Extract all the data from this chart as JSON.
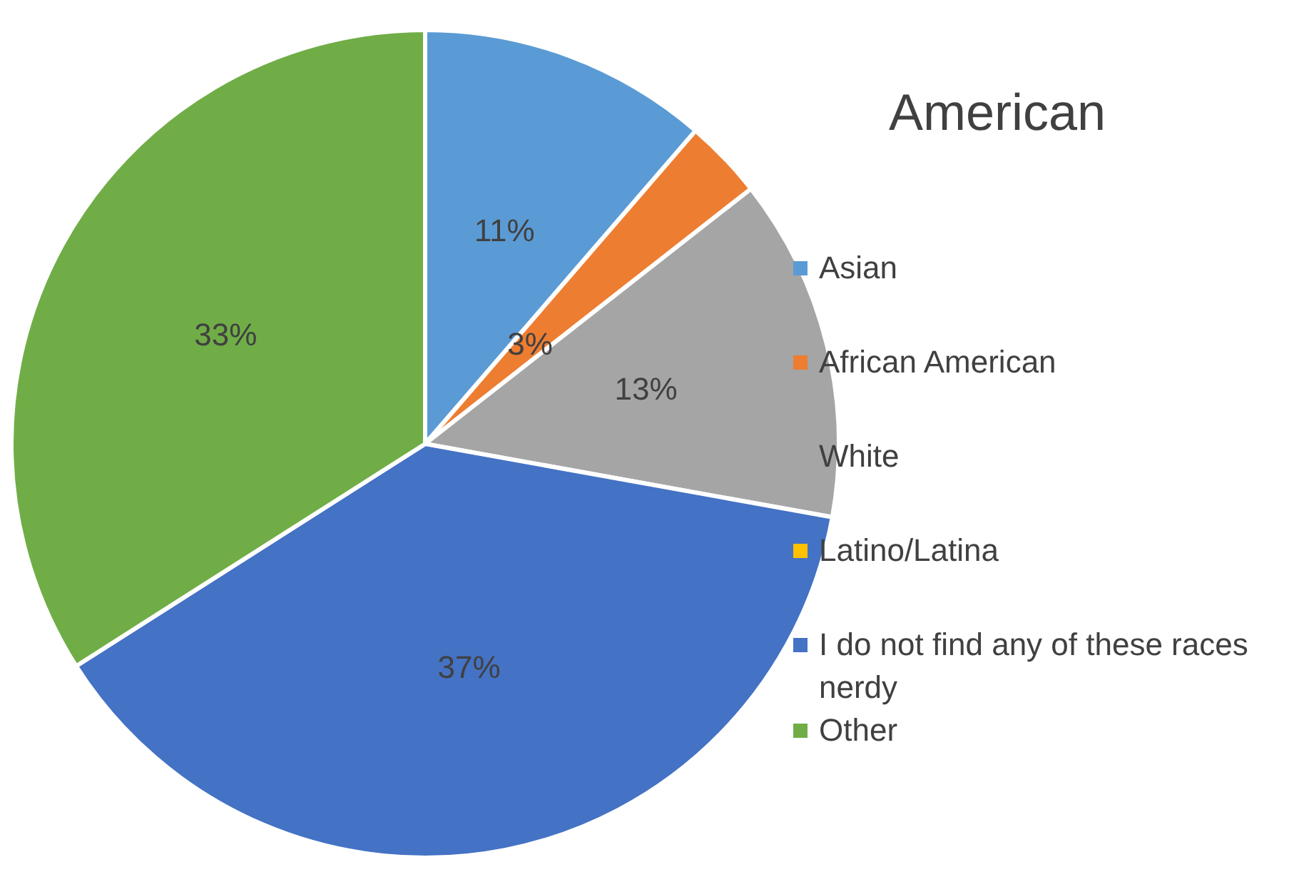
{
  "chart_data": {
    "type": "pie",
    "title": "American",
    "categories": [
      "Asian",
      "African American",
      "White",
      "Latino/Latina",
      "I do not find any of these races nerdy",
      "Other"
    ],
    "values": [
      11,
      3,
      13,
      0,
      37,
      33
    ],
    "colors": [
      "#5b9bd5",
      "#ed7d31",
      "#a5a5a5",
      "#ffc000",
      "#4472c4",
      "#70ad47"
    ],
    "value_labels": [
      "11%",
      "3%",
      "13%",
      null,
      "37%",
      "33%"
    ],
    "legend": "right"
  }
}
